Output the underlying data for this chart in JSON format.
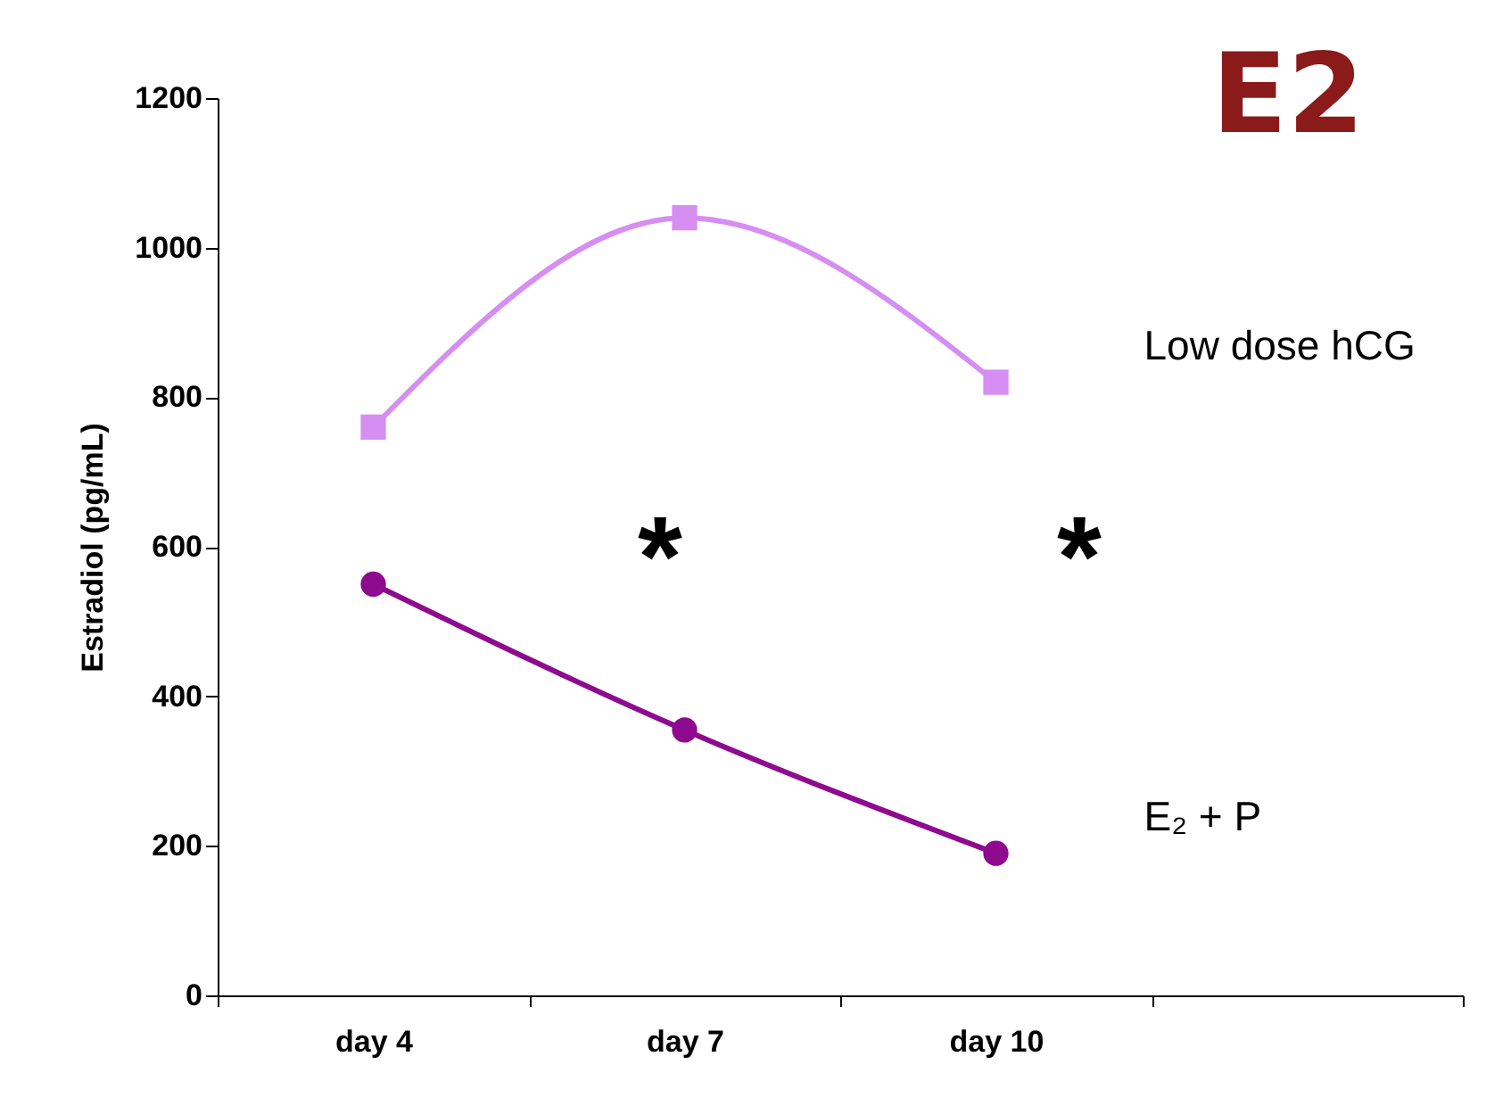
{
  "chart_data": {
    "type": "line",
    "title": "E2",
    "ylabel": "Estradiol (pg/mL)",
    "categories": [
      "day 4",
      "day 7",
      "day 10",
      null
    ],
    "ylim": [
      0,
      1200
    ],
    "yticks": [
      0,
      200,
      400,
      600,
      800,
      1000,
      1200
    ],
    "grid": false,
    "annotations": [
      "*",
      "*"
    ],
    "series": [
      {
        "name": "Low dose hCG",
        "color": "#d68ef2",
        "marker": "square",
        "values": [
          760,
          1040,
          820,
          null
        ]
      },
      {
        "name": "E₂ + P",
        "color": "#8e0a8e",
        "marker": "circle",
        "values": [
          550,
          355,
          190,
          null
        ]
      }
    ]
  }
}
